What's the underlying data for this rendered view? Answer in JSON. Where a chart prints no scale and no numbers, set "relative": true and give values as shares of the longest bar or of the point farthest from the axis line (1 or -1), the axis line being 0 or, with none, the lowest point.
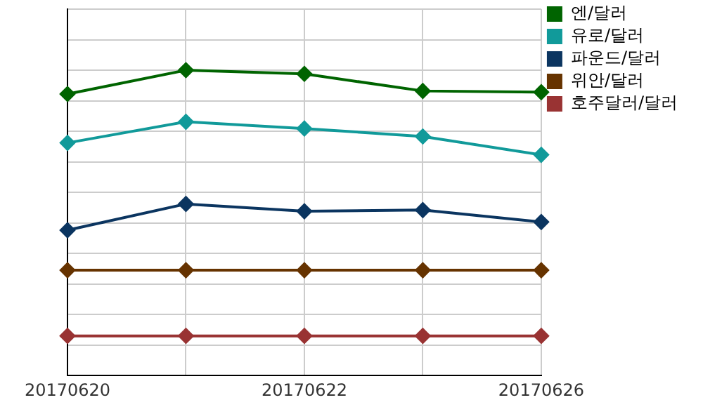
{
  "chart_data": {
    "type": "line",
    "relative": true,
    "categories": [
      "20170620",
      null,
      "20170622",
      null,
      "20170626"
    ],
    "series": [
      {
        "name": "엔/달러",
        "color": "#006400",
        "values": [
          0.922,
          1,
          0.988,
          0.932,
          0.928
        ]
      },
      {
        "name": "유로/달러",
        "color": "#119a9a",
        "values": [
          0.762,
          0.831,
          0.809,
          0.783,
          0.723
        ]
      },
      {
        "name": "파운드/달러",
        "color": "#0b3560",
        "values": [
          0.476,
          0.562,
          0.538,
          0.542,
          0.503
        ]
      },
      {
        "name": "위안/달러",
        "color": "#663300",
        "values": [
          0.345,
          0.345,
          0.345,
          0.345,
          0.345
        ]
      },
      {
        "name": "호주달러/달러",
        "color": "#993333",
        "values": [
          0.13,
          0.13,
          0.13,
          0.13,
          0.13
        ]
      }
    ],
    "grid": true,
    "legend": "top right",
    "marker": "diamond",
    "line_style": "solid"
  }
}
